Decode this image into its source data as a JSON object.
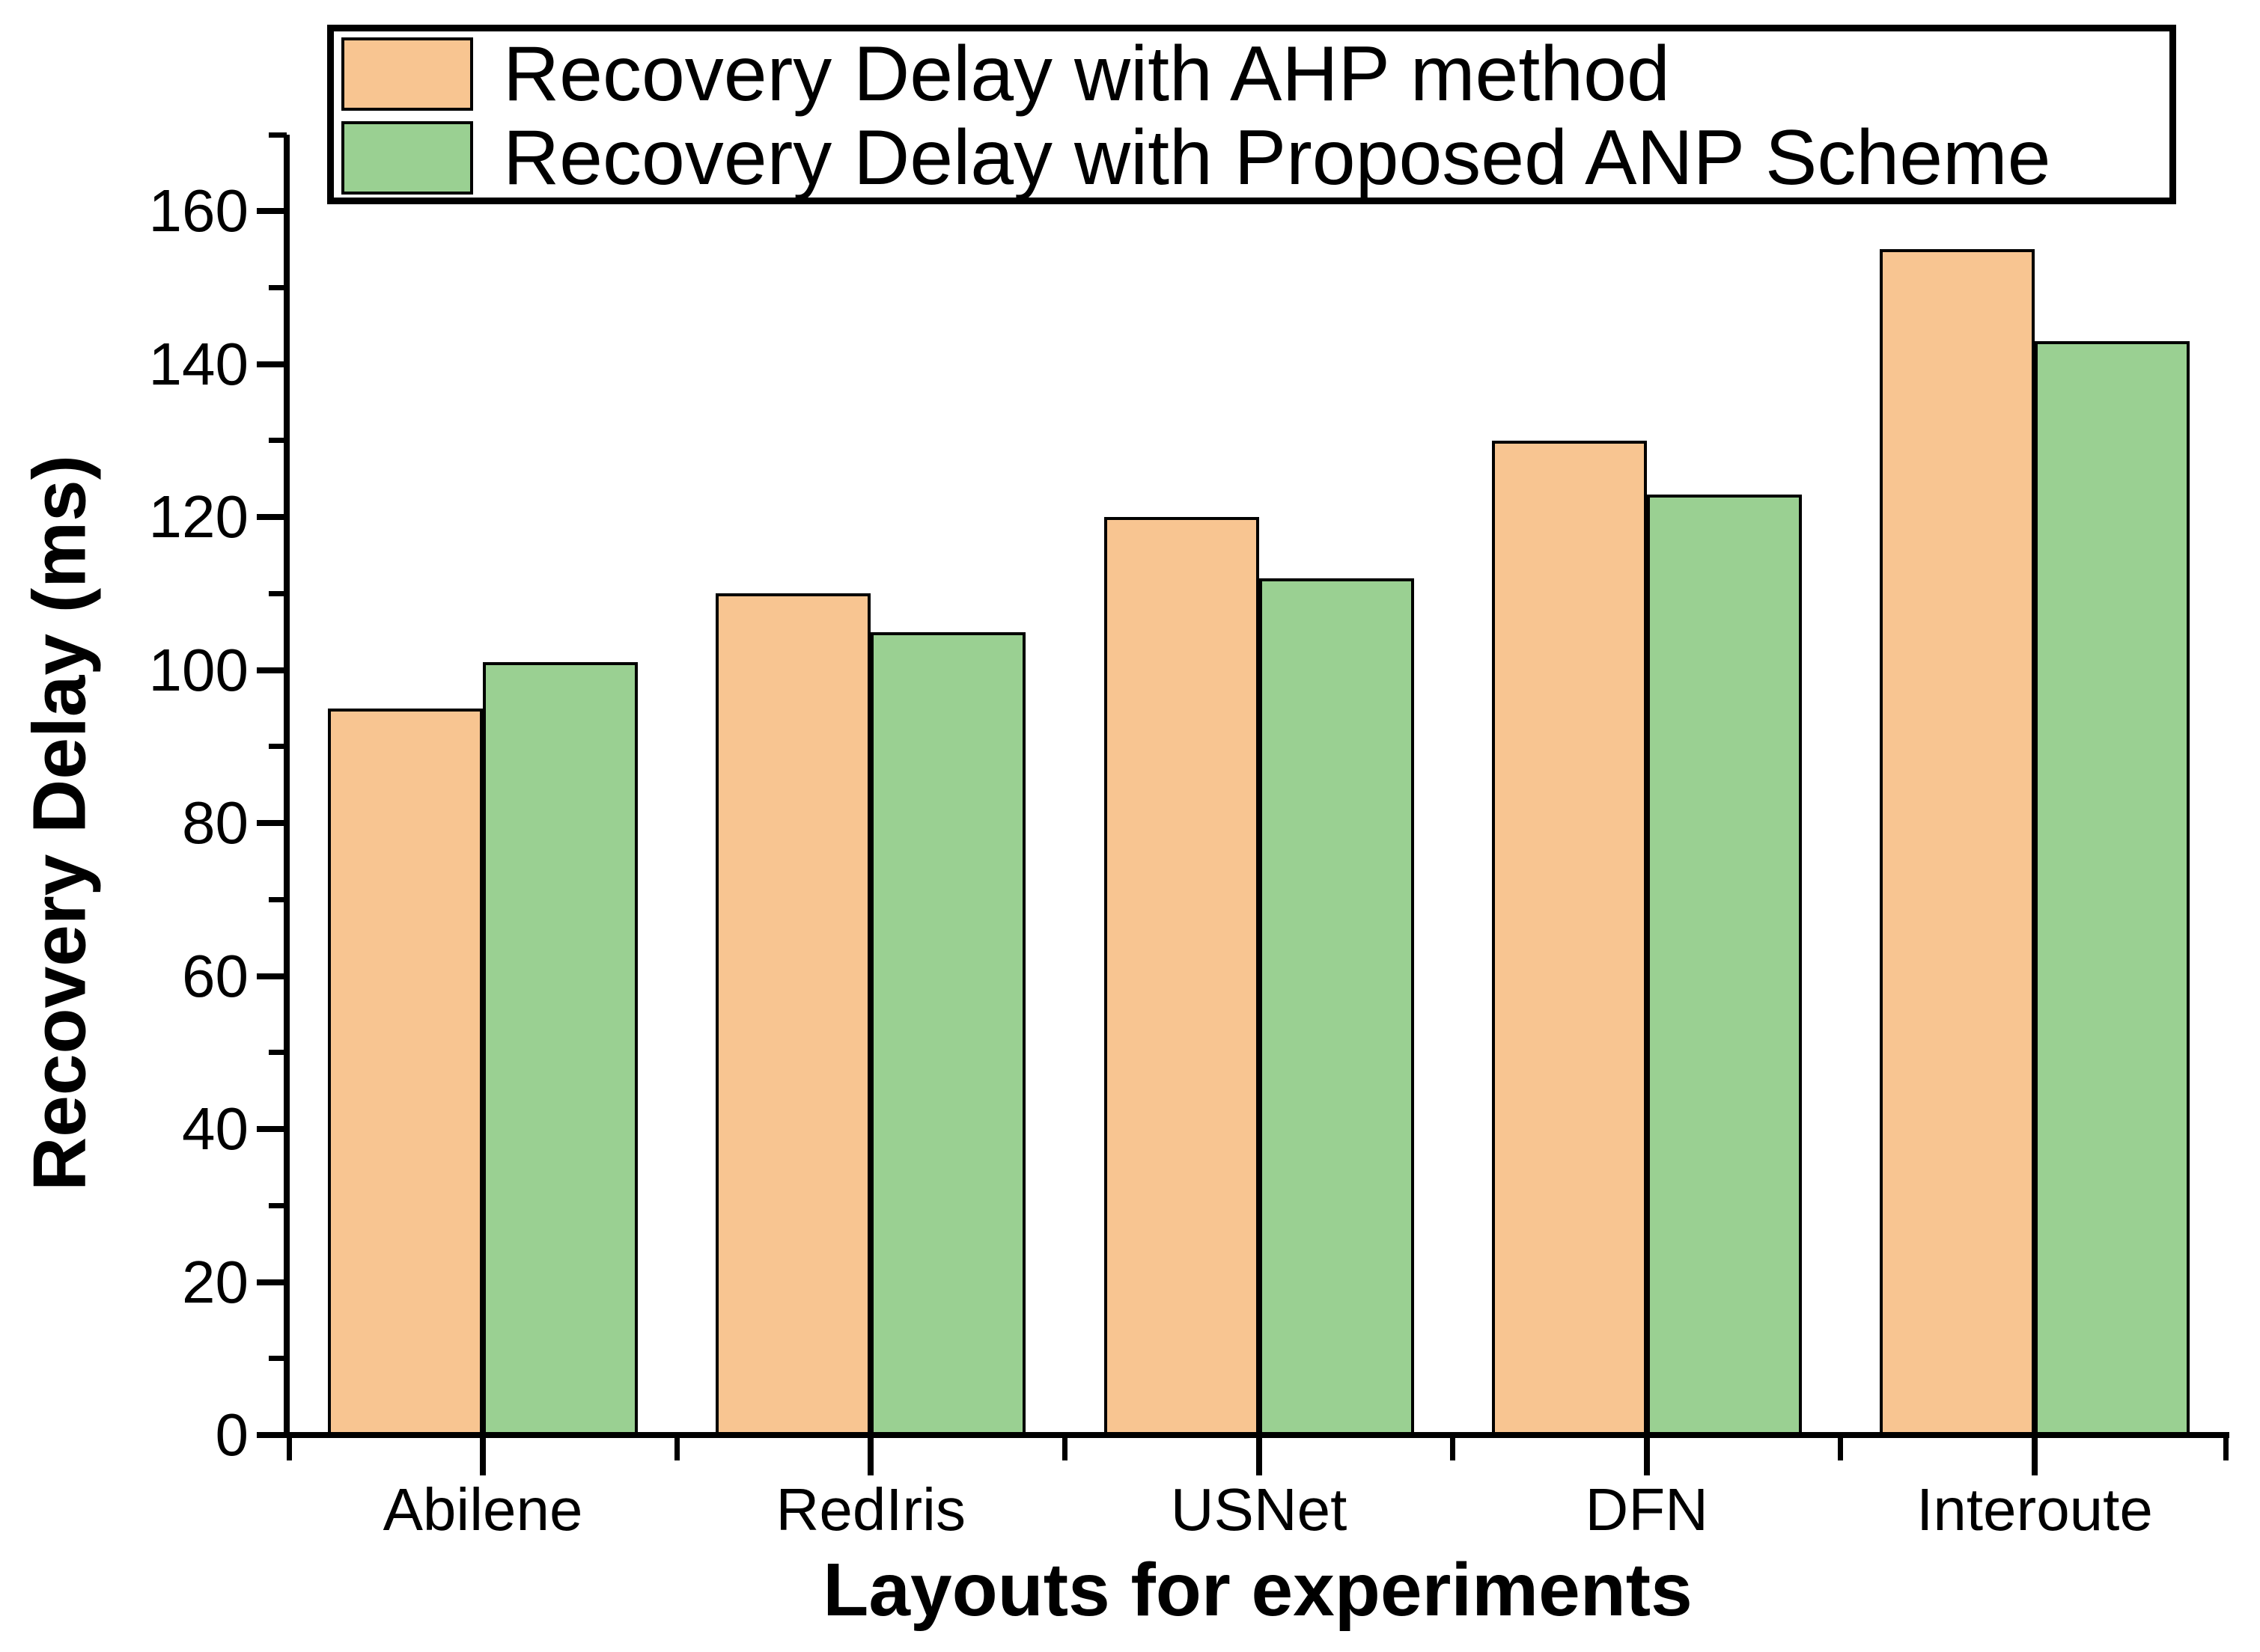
{
  "chart_data": {
    "type": "bar",
    "title": "",
    "categories": [
      "Abilene",
      "RedIris",
      "USNet",
      "DFN",
      "Interoute"
    ],
    "series": [
      {
        "name": "Recovery Delay with AHP method",
        "color": "#F8C591",
        "values": [
          95,
          110,
          120,
          130,
          155
        ]
      },
      {
        "name": "Recovery Delay with Proposed ANP Scheme",
        "color": "#9AD092",
        "values": [
          101,
          105,
          112,
          123,
          143
        ]
      }
    ],
    "xlabel": "Layouts for experiments",
    "ylabel": "Recovery Delay (ms)",
    "ylim": [
      0,
      170
    ],
    "y_major_step": 20,
    "y_minor_step": 10,
    "y_tick_labels": [
      "0",
      "20",
      "40",
      "60",
      "80",
      "100",
      "120",
      "140",
      "160"
    ],
    "legend_position": "top-inside",
    "grid": false
  },
  "colors": {
    "ahp_fill": "#F8C591",
    "anp_fill": "#9AD092",
    "bar_border": "#000000",
    "axis": "#000000",
    "background": "#FFFFFF"
  }
}
